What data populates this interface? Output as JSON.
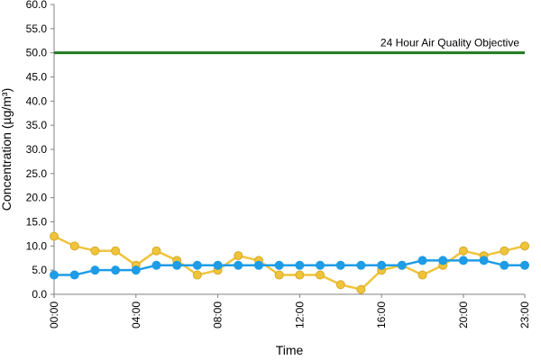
{
  "chart_data": {
    "type": "line",
    "title": "",
    "xlabel": "Time",
    "ylabel": "Concentration (µg/m³)",
    "ylim": [
      0,
      60
    ],
    "yticks": [
      "0.0",
      "5.0",
      "10.0",
      "15.0",
      "20.0",
      "25.0",
      "30.0",
      "35.0",
      "40.0",
      "45.0",
      "50.0",
      "55.0",
      "60.0"
    ],
    "xlim": [
      0,
      23
    ],
    "x": [
      0,
      1,
      2,
      3,
      4,
      5,
      6,
      7,
      8,
      9,
      10,
      11,
      12,
      13,
      14,
      15,
      16,
      17,
      18,
      19,
      20,
      21,
      22,
      23
    ],
    "xticks": [
      {
        "x": 0,
        "label": "00:00"
      },
      {
        "x": 4,
        "label": "04:00"
      },
      {
        "x": 8,
        "label": "08:00"
      },
      {
        "x": 12,
        "label": "12:00"
      },
      {
        "x": 16,
        "label": "16:00"
      },
      {
        "x": 20,
        "label": "20:00"
      },
      {
        "x": 23,
        "label": "23:00"
      }
    ],
    "grid": false,
    "legend": "none",
    "series": [
      {
        "color": "#f0c43a",
        "stroke": "#d7a92a",
        "values": [
          12,
          10,
          9,
          9,
          6,
          9,
          7,
          4,
          5,
          8,
          7,
          4,
          4,
          4,
          2,
          1,
          5,
          6,
          4,
          6,
          9,
          8,
          9,
          10
        ]
      },
      {
        "color": "#1e9ce6",
        "stroke": "#1e9ce6",
        "values": [
          4,
          4,
          5,
          5,
          5,
          6,
          6,
          6,
          6,
          6,
          6,
          6,
          6,
          6,
          6,
          6,
          6,
          6,
          7,
          7,
          7,
          7,
          6,
          6
        ]
      }
    ],
    "reference_line": {
      "y": 50,
      "label": "24 Hour Air Quality Objective",
      "color": "#1e7a1e"
    }
  }
}
